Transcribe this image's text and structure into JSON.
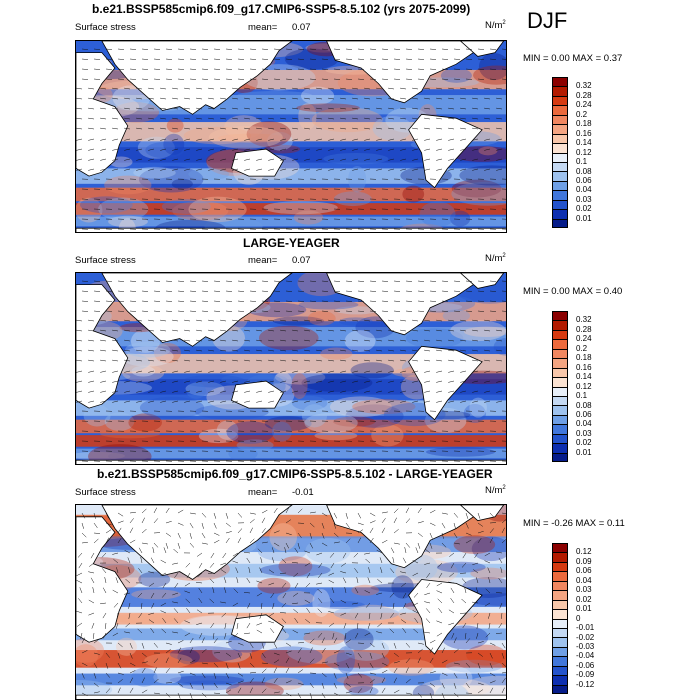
{
  "season": "DJF",
  "panels": [
    {
      "title": "b.e21.BSSP585cmip6.f09_g17.CMIP6-SSP5-8.5.102 (yrs 2075-2099)",
      "variable": "Surface stress",
      "mean_label": "mean=",
      "mean_value": "0.07",
      "units": "N/m",
      "units_sup": "2",
      "minmax": "MIN =   0.00 MAX =   0.37",
      "colorbar": [
        "0.32",
        "0.28",
        "0.24",
        "0.2",
        "0.18",
        "0.16",
        "0.14",
        "0.12",
        "0.1",
        "0.08",
        "0.06",
        "0.04",
        "0.03",
        "0.02",
        "0.01"
      ],
      "colors": [
        "#8b0000",
        "#b31a00",
        "#d63a11",
        "#ec6a3d",
        "#f18760",
        "#f4a582",
        "#f8c7aa",
        "#fbe3d3",
        "#e7eff9",
        "#c4d9f3",
        "#9ec2ee",
        "#6e9fe6",
        "#4177dc",
        "#2353cc",
        "#0d2fb0",
        "#061c8a"
      ]
    },
    {
      "title": "LARGE-YEAGER",
      "variable": "Surface stress",
      "mean_label": "mean=",
      "mean_value": "0.07",
      "units": "N/m",
      "units_sup": "2",
      "minmax": "MIN =   0.00 MAX =   0.40",
      "colorbar": [
        "0.32",
        "0.28",
        "0.24",
        "0.2",
        "0.18",
        "0.16",
        "0.14",
        "0.12",
        "0.1",
        "0.08",
        "0.06",
        "0.04",
        "0.03",
        "0.02",
        "0.01"
      ],
      "colors": [
        "#8b0000",
        "#b31a00",
        "#d63a11",
        "#ec6a3d",
        "#f18760",
        "#f4a582",
        "#f8c7aa",
        "#fbe3d3",
        "#e7eff9",
        "#c4d9f3",
        "#9ec2ee",
        "#6e9fe6",
        "#4177dc",
        "#2353cc",
        "#0d2fb0",
        "#061c8a"
      ]
    },
    {
      "title": "b.e21.BSSP585cmip6.f09_g17.CMIP6-SSP5-8.5.102 - LARGE-YEAGER",
      "variable": "Surface stress",
      "mean_label": "mean=",
      "mean_value": "-0.01",
      "units": "N/m",
      "units_sup": "2",
      "minmax": "MIN =  -0.26 MAX =   0.11",
      "colorbar": [
        "0.12",
        "0.09",
        "0.06",
        "0.04",
        "0.03",
        "0.02",
        "0.01",
        "0",
        "-0.01",
        "-0.02",
        "-0.03",
        "-0.04",
        "-0.06",
        "-0.09",
        "-0.12"
      ],
      "colors": [
        "#8b0000",
        "#b31a00",
        "#d63a11",
        "#ec6a3d",
        "#f18760",
        "#f4a582",
        "#f8c7aa",
        "#fbe3d3",
        "#e7eff9",
        "#c4d9f3",
        "#9ec2ee",
        "#6e9fe6",
        "#4177dc",
        "#2353cc",
        "#0d2fb0",
        "#061c8a"
      ]
    }
  ]
}
